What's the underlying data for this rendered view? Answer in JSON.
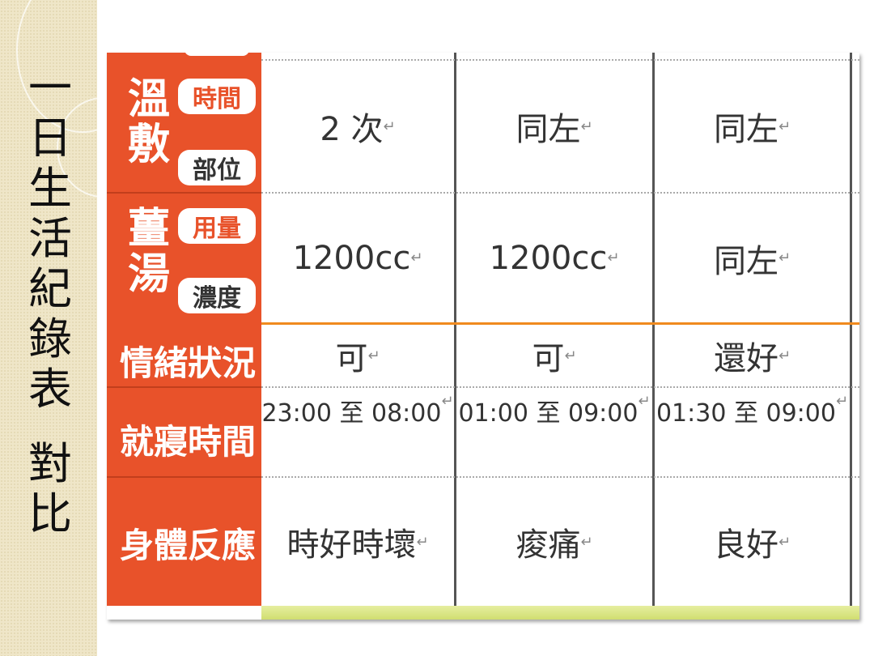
{
  "title": [
    "一",
    "日",
    "生",
    "活",
    "紀",
    "錄",
    "表",
    "對",
    "比"
  ],
  "colors": {
    "header": "#e8522a",
    "divider": "#f08a1e",
    "footer_bar": "#d8e480"
  },
  "groups": [
    {
      "label": [
        "溫",
        "敷"
      ],
      "sub": [
        "時間",
        "部位"
      ],
      "sub_colors": [
        "#e8522a",
        "#333333"
      ]
    },
    {
      "label": [
        "薑",
        "湯"
      ],
      "sub": [
        "用量",
        "濃度"
      ],
      "sub_colors": [
        "#e8522a",
        "#333333"
      ]
    }
  ],
  "rows": [
    {
      "label": "",
      "cells": [
        "2 次",
        "同左",
        "同左"
      ]
    },
    {
      "label": "",
      "cells": [
        "1200cc",
        "1200cc",
        "同左"
      ]
    },
    {
      "label": "情緒狀況",
      "cells": [
        "可",
        "可",
        "還好"
      ]
    },
    {
      "label": "就寢時間",
      "cells": [
        "23:00 至 08:00",
        "01:00 至 09:00",
        "01:30 至 09:00"
      ]
    },
    {
      "label": "身體反應",
      "cells": [
        "時好時壞",
        "痠痛",
        "良好"
      ]
    }
  ],
  "return_mark": "↵"
}
